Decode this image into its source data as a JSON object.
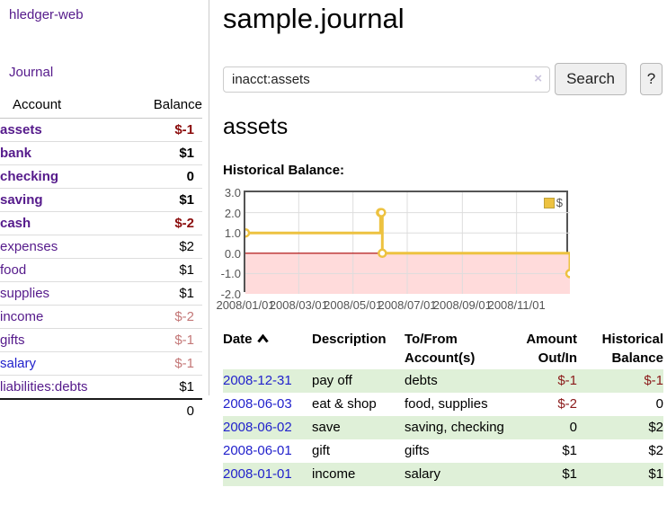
{
  "app": {
    "brand": "hledger-web",
    "nav_journal": "Journal"
  },
  "sidebar": {
    "headers": {
      "account": "Account",
      "balance": "Balance"
    },
    "accounts": [
      {
        "name": "assets",
        "balance": "$-1"
      },
      {
        "name": "bank",
        "balance": "$1"
      },
      {
        "name": "checking",
        "balance": "0"
      },
      {
        "name": "saving",
        "balance": "$1"
      },
      {
        "name": "cash",
        "balance": "$-2"
      },
      {
        "name": "expenses",
        "balance": "$2"
      },
      {
        "name": "food",
        "balance": "$1"
      },
      {
        "name": "supplies",
        "balance": "$1"
      },
      {
        "name": "income",
        "balance": "$-2"
      },
      {
        "name": "gifts",
        "balance": "$-1"
      },
      {
        "name": "salary",
        "balance": "$-1"
      },
      {
        "name": "liabilities:debts",
        "balance": "$1"
      }
    ],
    "total": "0"
  },
  "header": {
    "title": "sample.journal"
  },
  "search": {
    "value": "inacct:assets",
    "clear_icon": "×",
    "button_label": "Search",
    "help_label": "?"
  },
  "account_page": {
    "heading": "assets",
    "chart_title": "Historical Balance:"
  },
  "chart_data": {
    "type": "line",
    "step": true,
    "title": "Historical Balance",
    "series": [
      {
        "name": "$",
        "color": "#edc240",
        "points": [
          {
            "date": "2008-01-01",
            "day": 0,
            "value": 1
          },
          {
            "date": "2008-06-01",
            "day": 152,
            "value": 2
          },
          {
            "date": "2008-06-02",
            "day": 153,
            "value": 2
          },
          {
            "date": "2008-06-03",
            "day": 154,
            "value": 0
          },
          {
            "date": "2008-12-31",
            "day": 365,
            "value": -1
          }
        ]
      }
    ],
    "ylim": [
      -2,
      3
    ],
    "yticks": [
      3.0,
      2.0,
      1.0,
      0.0,
      -1.0,
      -2.0
    ],
    "ytick_labels": [
      "3.0",
      "2.0",
      "1.0",
      "0.0",
      "-1.0",
      "-2.0"
    ],
    "x_days_total": 365,
    "xticks": [
      {
        "day": 0,
        "label": "2008/01/01"
      },
      {
        "day": 60,
        "label": "2008/03/01"
      },
      {
        "day": 121,
        "label": "2008/05/01"
      },
      {
        "day": 182,
        "label": "2008/07/01"
      },
      {
        "day": 244,
        "label": "2008/09/01"
      },
      {
        "day": 305,
        "label": "2008/11/01"
      }
    ],
    "grid": true,
    "legend_position": "top-right",
    "gridline_color": "#dddddd",
    "zero_line_color": "#aa0000",
    "negative_region_color": "#ffdbdb",
    "axis_text_color": "#545454"
  },
  "register": {
    "headers": {
      "date": "Date",
      "description": "Description",
      "accounts": "To/From Account(s)",
      "amount": "Amount Out/In",
      "balance": "Historical Balance"
    },
    "rows": [
      {
        "date": "2008-12-31",
        "description": "pay off",
        "accounts": "debts",
        "amount": "$-1",
        "balance": "$-1"
      },
      {
        "date": "2008-06-03",
        "description": "eat & shop",
        "accounts": "food, supplies",
        "amount": "$-2",
        "balance": "0"
      },
      {
        "date": "2008-06-02",
        "description": "save",
        "accounts": "saving, checking",
        "amount": "0",
        "balance": "$2"
      },
      {
        "date": "2008-06-01",
        "description": "gift",
        "accounts": "gifts",
        "amount": "$1",
        "balance": "$2"
      },
      {
        "date": "2008-01-01",
        "description": "income",
        "accounts": "salary",
        "amount": "$1",
        "balance": "$1"
      }
    ]
  }
}
